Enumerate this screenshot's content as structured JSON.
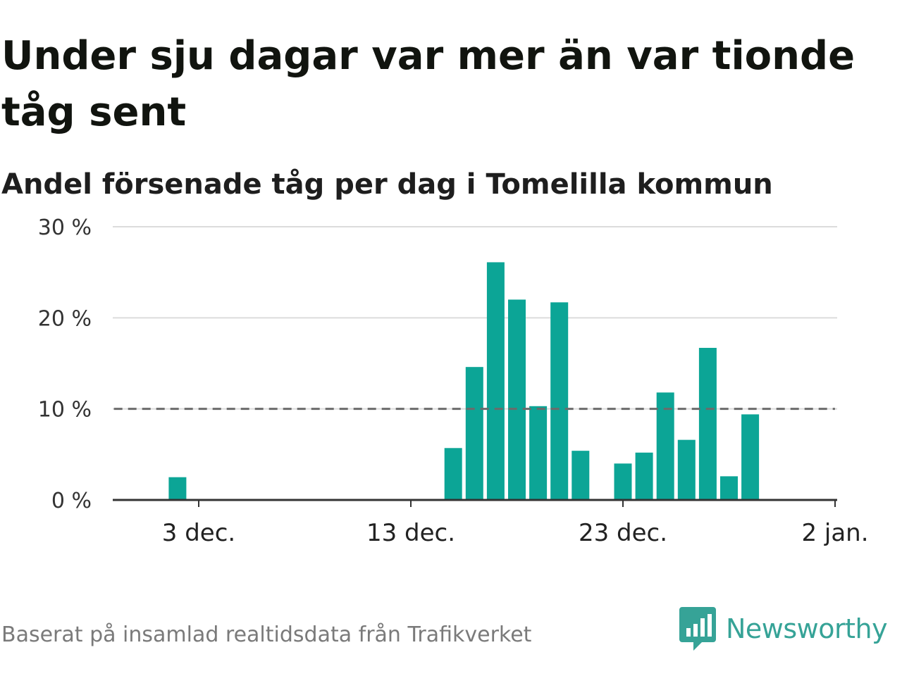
{
  "title": "Under sju dagar var mer än var tionde tåg sent",
  "subtitle": "Andel försenade tåg per dag i Tomelilla kommun",
  "footer": {
    "source": "Baserat på insamlad realtidsdata från Trafikverket",
    "brand": "Newsworthy"
  },
  "colors": {
    "bar": "#0ca596",
    "reference_line": "#6b6b6b",
    "grid": "#dcdcdc",
    "brand": "#36a397"
  },
  "chart_data": {
    "type": "bar",
    "title": "Under sju dagar var mer än var tionde tåg sent",
    "subtitle": "Andel försenade tåg per dag i Tomelilla kommun",
    "x_tick_labels": [
      {
        "date": "2023-12-03",
        "label": "3 dec."
      },
      {
        "date": "2023-12-13",
        "label": "13 dec."
      },
      {
        "date": "2023-12-23",
        "label": "23 dec."
      },
      {
        "date": "2024-01-02",
        "label": "2 jan."
      }
    ],
    "y_ticks": [
      {
        "value": 0,
        "label": "0 %"
      },
      {
        "value": 10,
        "label": "10 %"
      },
      {
        "value": 20,
        "label": "20 %"
      },
      {
        "value": 30,
        "label": "30 %"
      }
    ],
    "ylim": [
      0,
      30
    ],
    "xlim": [
      "2023-11-29",
      "2024-01-02"
    ],
    "grid": true,
    "reference_line": {
      "value": 10,
      "style": "dashed",
      "from": "2023-11-30",
      "to": "2024-01-01"
    },
    "series": [
      {
        "values": [
          {
            "date": "2023-12-02",
            "value": 2.5
          },
          {
            "date": "2023-12-15",
            "value": 5.7
          },
          {
            "date": "2023-12-16",
            "value": 14.6
          },
          {
            "date": "2023-12-17",
            "value": 26.1
          },
          {
            "date": "2023-12-18",
            "value": 22.0
          },
          {
            "date": "2023-12-19",
            "value": 10.3
          },
          {
            "date": "2023-12-20",
            "value": 21.7
          },
          {
            "date": "2023-12-21",
            "value": 5.4
          },
          {
            "date": "2023-12-23",
            "value": 4.0
          },
          {
            "date": "2023-12-24",
            "value": 5.2
          },
          {
            "date": "2023-12-25",
            "value": 11.8
          },
          {
            "date": "2023-12-26",
            "value": 6.6
          },
          {
            "date": "2023-12-27",
            "value": 16.7
          },
          {
            "date": "2023-12-28",
            "value": 2.6
          },
          {
            "date": "2023-12-29",
            "value": 9.4
          }
        ]
      }
    ]
  }
}
